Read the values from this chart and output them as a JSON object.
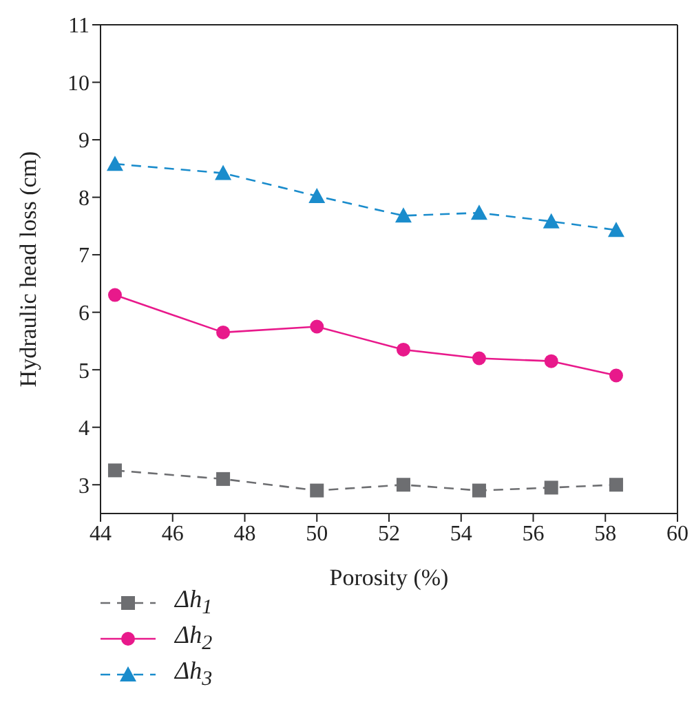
{
  "chart_data": {
    "type": "line",
    "xlabel": "Porosity (%)",
    "ylabel": "Hydraulic head loss (cm)",
    "x": [
      44.4,
      47.4,
      50,
      52.4,
      54.5,
      56.5,
      58.3
    ],
    "xlim": [
      44,
      60
    ],
    "xticks": [
      44,
      46,
      48,
      50,
      52,
      54,
      56,
      58,
      60
    ],
    "ylim": [
      2.5,
      11
    ],
    "yticks": [
      3,
      4,
      5,
      6,
      7,
      8,
      9,
      10,
      11
    ],
    "grid": false,
    "legend": "bottom left",
    "series": [
      {
        "name": "Δh$_{1}$",
        "color": "#6d6e71",
        "marker": "square",
        "line_style": "dashed",
        "values": [
          3.25,
          3.1,
          2.9,
          3.0,
          2.9,
          2.95,
          3.0
        ]
      },
      {
        "name": "Δh$_{2}$",
        "color": "#e8198b",
        "marker": "circle",
        "line_style": "solid",
        "values": [
          6.3,
          5.65,
          5.75,
          5.35,
          5.2,
          5.15,
          4.9
        ]
      },
      {
        "name": "Δh$_{3}$",
        "color": "#1a8ccc",
        "marker": "triangle",
        "line_style": "dashed",
        "values": [
          8.58,
          8.42,
          8.02,
          7.68,
          7.73,
          7.58,
          7.43
        ]
      }
    ]
  }
}
